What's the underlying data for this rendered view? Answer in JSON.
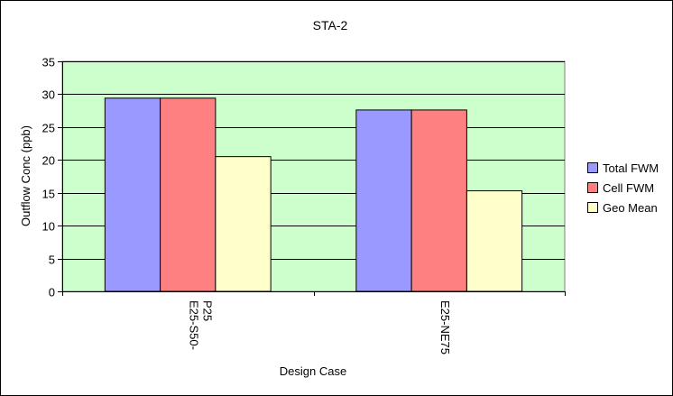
{
  "chart_data": {
    "type": "bar",
    "title": "STA-2",
    "xlabel": "Design Case",
    "ylabel": "Outflow Conc (ppb)",
    "ylim": [
      0,
      35
    ],
    "yticks": [
      "0",
      "5",
      "10",
      "15",
      "20",
      "25",
      "30",
      "35"
    ],
    "categories": [
      "E25-S50-P25",
      "E25-NE75"
    ],
    "series": [
      {
        "name": "Total FWM",
        "values": [
          29.4,
          27.6
        ],
        "color": "#9999ff"
      },
      {
        "name": "Cell FWM",
        "values": [
          29.4,
          27.6
        ],
        "color": "#ff8080"
      },
      {
        "name": "Geo Mean",
        "values": [
          20.5,
          15.3
        ],
        "color": "#ffffcc"
      }
    ],
    "plot_background": "#ccffcc",
    "grid": true,
    "legend_position": "right"
  }
}
